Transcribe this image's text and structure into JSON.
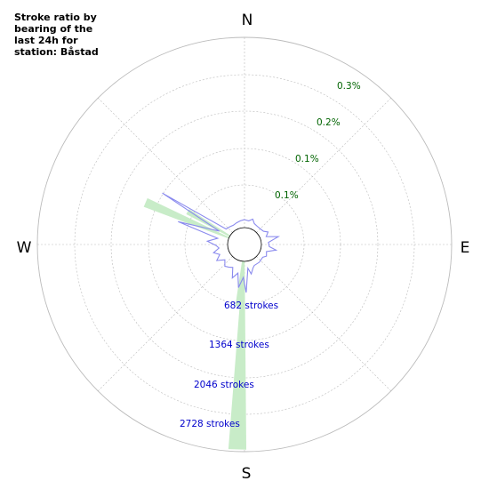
{
  "chart_data": {
    "type": "polar",
    "title": "Stroke ratio by\nbearing of the\nlast 24h for\nstation: Båstad",
    "directions": [
      "N",
      "E",
      "S",
      "W"
    ],
    "ratio_labels": [
      "0.1%",
      "0.1%",
      "0.2%",
      "0.3%"
    ],
    "count_labels": [
      "682 strokes",
      "1364 strokes",
      "2046 strokes",
      "2728 strokes"
    ],
    "colors": {
      "ratio_line": "#8a8aee",
      "count_fill": "#c8ecc8",
      "grid": "#bbbbbb",
      "ratio_text": "#006400",
      "count_text": "#0000cc"
    },
    "ratio_series": [
      {
        "bearing": 0,
        "r": 0.45
      },
      {
        "bearing": 10,
        "r": 0.4
      },
      {
        "bearing": 18,
        "r": 0.55
      },
      {
        "bearing": 25,
        "r": 0.35
      },
      {
        "bearing": 35,
        "r": 0.3
      },
      {
        "bearing": 45,
        "r": 0.3
      },
      {
        "bearing": 55,
        "r": 0.35
      },
      {
        "bearing": 62,
        "r": 0.55
      },
      {
        "bearing": 70,
        "r": 0.35
      },
      {
        "bearing": 77,
        "r": 1.0
      },
      {
        "bearing": 85,
        "r": 0.4
      },
      {
        "bearing": 95,
        "r": 0.45
      },
      {
        "bearing": 100,
        "r": 0.85
      },
      {
        "bearing": 108,
        "r": 0.35
      },
      {
        "bearing": 118,
        "r": 0.45
      },
      {
        "bearing": 125,
        "r": 0.3
      },
      {
        "bearing": 140,
        "r": 0.35
      },
      {
        "bearing": 155,
        "r": 0.35
      },
      {
        "bearing": 160,
        "r": 0.45
      },
      {
        "bearing": 167,
        "r": 0.75
      },
      {
        "bearing": 172,
        "r": 0.4
      },
      {
        "bearing": 178,
        "r": 1.75
      },
      {
        "bearing": 182,
        "r": 0.9
      },
      {
        "bearing": 188,
        "r": 1.5
      },
      {
        "bearing": 193,
        "r": 0.7
      },
      {
        "bearing": 200,
        "r": 1.05
      },
      {
        "bearing": 207,
        "r": 0.5
      },
      {
        "bearing": 215,
        "r": 0.6
      },
      {
        "bearing": 222,
        "r": 0.7
      },
      {
        "bearing": 232,
        "r": 0.45
      },
      {
        "bearing": 240,
        "r": 0.85
      },
      {
        "bearing": 248,
        "r": 0.55
      },
      {
        "bearing": 255,
        "r": 0.85
      },
      {
        "bearing": 262,
        "r": 0.5
      },
      {
        "bearing": 268,
        "r": 0.65
      },
      {
        "bearing": 275,
        "r": 1.15
      },
      {
        "bearing": 283,
        "r": 0.6
      },
      {
        "bearing": 289,
        "r": 3.0
      },
      {
        "bearing": 298,
        "r": 0.65
      },
      {
        "bearing": 302,
        "r": 4.5
      },
      {
        "bearing": 310,
        "r": 0.4
      },
      {
        "bearing": 320,
        "r": 0.35
      },
      {
        "bearing": 330,
        "r": 0.3
      },
      {
        "bearing": 340,
        "r": 0.35
      },
      {
        "bearing": 350,
        "r": 0.4
      }
    ],
    "count_series": [
      {
        "bearing": 182,
        "value": 2700
      },
      {
        "bearing": 186,
        "value": 650
      },
      {
        "bearing": 293,
        "value": 1300
      },
      {
        "bearing": 300,
        "value": 700
      }
    ]
  }
}
